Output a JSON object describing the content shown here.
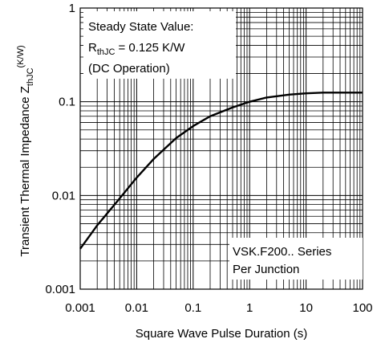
{
  "chart_data": {
    "type": "line",
    "xscale": "log",
    "yscale": "log",
    "xlim": [
      0.001,
      100
    ],
    "ylim": [
      0.001,
      1
    ],
    "grid": true,
    "xlabel": "Square Wave Pulse Duration (s)",
    "ylabel": {
      "main": "Transient Thermal Impedance Z",
      "sub": "thJC",
      "unit": "(K/W)"
    },
    "x_ticks": [
      "0.001",
      "0.01",
      "0.1",
      "1",
      "10",
      "100"
    ],
    "y_ticks": [
      "0.001",
      "0.01",
      "0.1",
      "1"
    ],
    "series": [
      {
        "x": [
          0.001,
          0.002,
          0.005,
          0.01,
          0.02,
          0.05,
          0.1,
          0.2,
          0.5,
          1,
          2,
          5,
          10,
          20,
          50,
          100
        ],
        "y": [
          0.0027,
          0.0048,
          0.0093,
          0.0155,
          0.0245,
          0.041,
          0.055,
          0.07,
          0.087,
          0.1,
          0.111,
          0.119,
          0.123,
          0.125,
          0.125,
          0.125
        ]
      }
    ],
    "annotations": {
      "steady_line1": "Steady State Value:",
      "steady_r": "R",
      "steady_r_sub": "thJC",
      "steady_r_val": "= 0.125 K/W",
      "steady_line3": "(DC Operation)",
      "series_line1": "VSK.F200.. Series",
      "series_line2": "Per Junction"
    }
  }
}
